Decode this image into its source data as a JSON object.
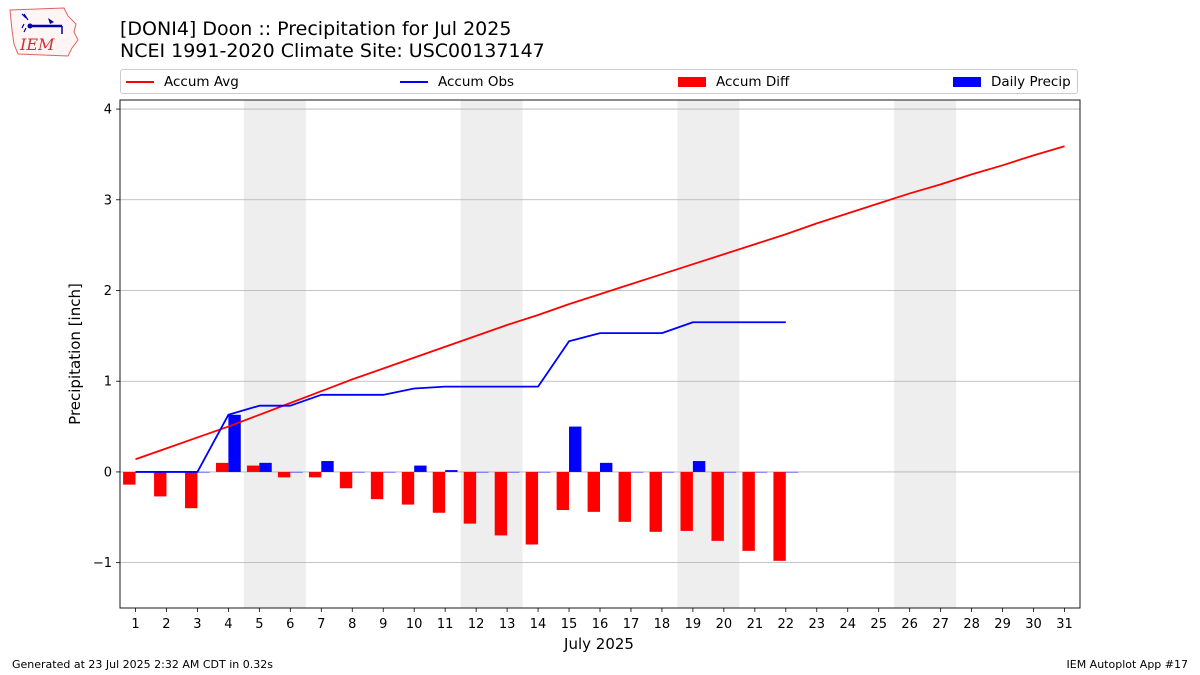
{
  "title_line1": "[DONI4] Doon :: Precipitation for Jul 2025",
  "title_line2": "NCEI 1991-2020 Climate Site: USC00137147",
  "logo_text": "IEM",
  "footer_left": "Generated at 23 Jul 2025 2:32 AM CDT in 0.32s",
  "footer_right": "IEM Autoplot App #17",
  "colors": {
    "accum_avg": "#ff0000",
    "accum_obs": "#0000ff",
    "accum_diff": "#ff0000",
    "daily_precip": "#0000ff",
    "weekend_shade": "#eeeeee",
    "grid": "#b0b0b0"
  },
  "chart_data": {
    "type": "bar",
    "xlabel": "July 2025",
    "ylabel": "Precipitation [inch]",
    "xlim": [
      0.5,
      31.5
    ],
    "ylim": [
      -1.5,
      4.1
    ],
    "yticks": [
      -1,
      0,
      1,
      2,
      3,
      4
    ],
    "yticklabels": [
      "−1",
      "0",
      "1",
      "2",
      "3",
      "4"
    ],
    "grid": "horizontal",
    "legend_placement": "top, above plot",
    "days": [
      1,
      2,
      3,
      4,
      5,
      6,
      7,
      8,
      9,
      10,
      11,
      12,
      13,
      14,
      15,
      16,
      17,
      18,
      19,
      20,
      21,
      22,
      23,
      24,
      25,
      26,
      27,
      28,
      29,
      30,
      31
    ],
    "weekend_shading": [
      [
        4.5,
        6.5
      ],
      [
        11.5,
        13.5
      ],
      [
        18.5,
        20.5
      ],
      [
        25.5,
        27.5
      ]
    ],
    "series": [
      {
        "name": "Accum Avg",
        "kind": "line",
        "values": [
          0.14,
          0.26,
          0.38,
          0.5,
          0.63,
          0.76,
          0.89,
          1.02,
          1.14,
          1.26,
          1.38,
          1.5,
          1.62,
          1.73,
          1.85,
          1.96,
          2.07,
          2.18,
          2.29,
          2.4,
          2.51,
          2.62,
          2.74,
          2.85,
          2.96,
          3.07,
          3.17,
          3.28,
          3.38,
          3.49,
          3.59
        ]
      },
      {
        "name": "Accum Obs",
        "kind": "line",
        "values": [
          0.0,
          0.0,
          0.0,
          0.63,
          0.73,
          0.73,
          0.85,
          0.85,
          0.85,
          0.92,
          0.94,
          0.94,
          0.94,
          0.94,
          1.44,
          1.53,
          1.53,
          1.53,
          1.65,
          1.65,
          1.65,
          1.65
        ]
      },
      {
        "name": "Accum Diff",
        "kind": "bar",
        "values": [
          -0.14,
          -0.27,
          -0.4,
          0.1,
          0.07,
          -0.06,
          -0.06,
          -0.18,
          -0.3,
          -0.36,
          -0.45,
          -0.57,
          -0.7,
          -0.8,
          -0.42,
          -0.44,
          -0.55,
          -0.66,
          -0.65,
          -0.76,
          -0.87,
          -0.98
        ]
      },
      {
        "name": "Daily Precip",
        "kind": "bar",
        "values": [
          0.0,
          0.0,
          0.0,
          0.63,
          0.1,
          0.0,
          0.12,
          0.0,
          0.0,
          0.07,
          0.02,
          0.0,
          0.0,
          0.0,
          0.5,
          0.1,
          0.0,
          0.0,
          0.12,
          0.0,
          0.0,
          0.0
        ]
      }
    ]
  }
}
